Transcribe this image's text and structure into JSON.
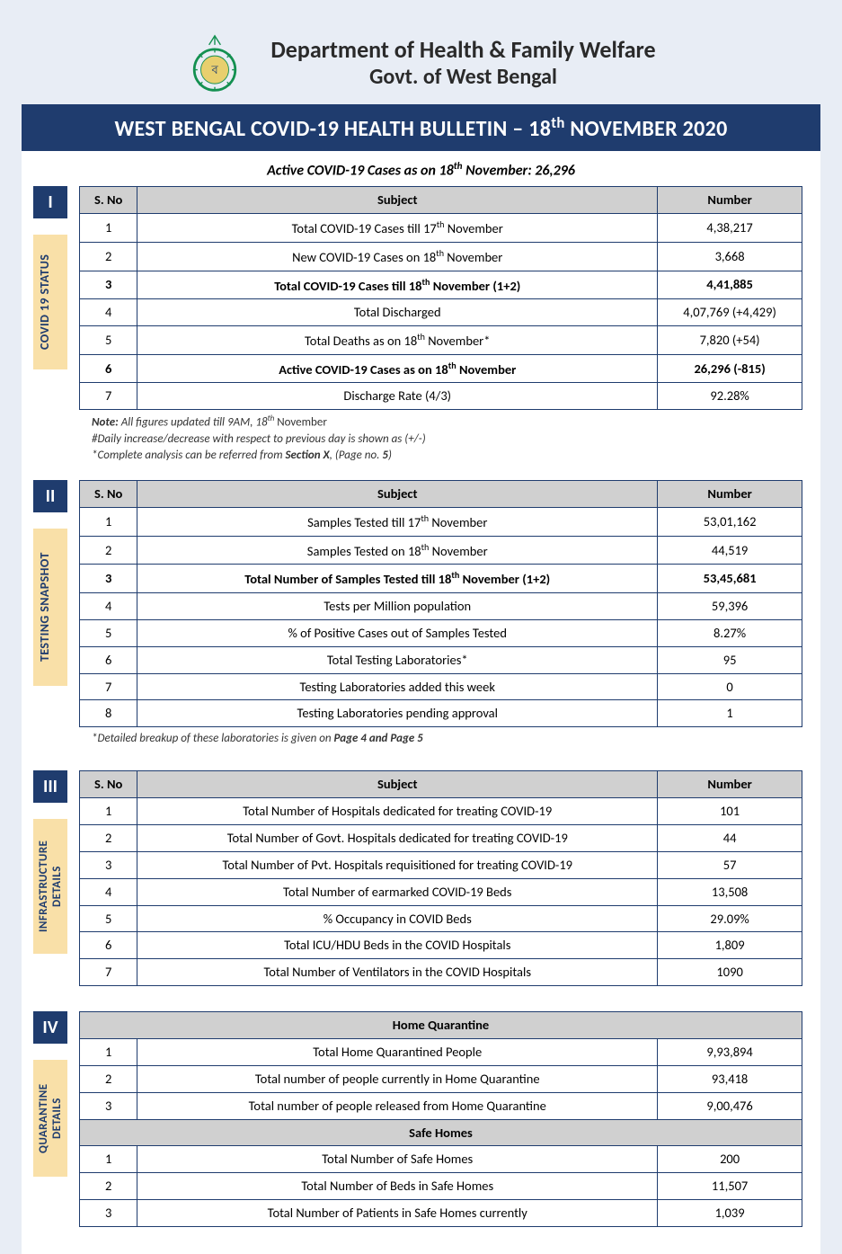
{
  "header": {
    "dept": "Department of Health & Family Welfare",
    "govt": "Govt. of West Bengal",
    "banner_pre": "WEST BENGAL COVID-19 HEALTH BULLETIN – 18",
    "banner_sup": "th",
    "banner_post": " NOVEMBER 2020",
    "active_line_pre": "Active COVID-19 Cases as on 18",
    "active_line_sup": "th",
    "active_line_post": " November: 26,296"
  },
  "columns": {
    "sno": "S. No",
    "subject": "Subject",
    "number": "Number"
  },
  "section_labels": {
    "s1": "COVID 19 STATUS",
    "s2": "TESTING SNAPSHOT",
    "s3": "INFRASTRUCTURE\nDETAILS",
    "s4": "QUARANTINE\nDETAILS"
  },
  "section_nums": {
    "s1": "I",
    "s2": "II",
    "s3": "III",
    "s4": "IV"
  },
  "table1": {
    "rows": [
      {
        "sno": "1",
        "subject_pre": "Total COVID-19 Cases till 17",
        "subject_sup": "th",
        "subject_post": " November",
        "num": "4,38,217",
        "bold": false
      },
      {
        "sno": "2",
        "subject_pre": "New COVID-19 Cases on 18",
        "subject_sup": "th",
        "subject_post": " November",
        "num": "3,668",
        "bold": false
      },
      {
        "sno": "3",
        "subject_pre": "Total COVID-19 Cases till 18",
        "subject_sup": "th",
        "subject_post": " November (1+2)",
        "num": "4,41,885",
        "bold": true
      },
      {
        "sno": "4",
        "subject_pre": "Total Discharged",
        "subject_sup": "",
        "subject_post": "",
        "num": "4,07,769 (+4,429)",
        "bold": false
      },
      {
        "sno": "5",
        "subject_pre": "Total Deaths as on 18",
        "subject_sup": "th",
        "subject_post": " November*",
        "num": "7,820 (+54)",
        "bold": false
      },
      {
        "sno": "6",
        "subject_pre": "Active COVID-19 Cases as on 18",
        "subject_sup": "th",
        "subject_post": " November",
        "num": "26,296 (-815)",
        "bold": true
      },
      {
        "sno": "7",
        "subject_pre": "Discharge Rate (4/3)",
        "subject_sup": "",
        "subject_post": "",
        "num": "92.28%",
        "bold": false
      }
    ]
  },
  "notes1": {
    "l1_a": "Note:",
    "l1_b": " All figures updated till 9AM, 18",
    "l1_sup": "th",
    "l1_c": " November",
    "l2": "#Daily increase/decrease with respect to previous day is shown as (+/-)",
    "l3_a": "*Complete analysis can be referred from ",
    "l3_b": "Section X",
    "l3_c": ", (Page no. ",
    "l3_d": "5",
    "l3_e": ")"
  },
  "table2": {
    "rows": [
      {
        "sno": "1",
        "subject_pre": "Samples Tested till 17",
        "subject_sup": "th",
        "subject_post": " November",
        "num": "53,01,162",
        "bold": false
      },
      {
        "sno": "2",
        "subject_pre": "Samples Tested on 18",
        "subject_sup": "th",
        "subject_post": " November",
        "num": "44,519",
        "bold": false
      },
      {
        "sno": "3",
        "subject_pre": "Total Number of Samples Tested till 18",
        "subject_sup": "th",
        "subject_post": " November (1+2)",
        "num": "53,45,681",
        "bold": true
      },
      {
        "sno": "4",
        "subject_pre": "Tests per Million population",
        "subject_sup": "",
        "subject_post": "",
        "num": "59,396",
        "bold": false
      },
      {
        "sno": "5",
        "subject_pre": "% of Positive Cases out of Samples Tested",
        "subject_sup": "",
        "subject_post": "",
        "num": "8.27%",
        "bold": false
      },
      {
        "sno": "6",
        "subject_pre": "Total Testing Laboratories*",
        "subject_sup": "",
        "subject_post": "",
        "num": "95",
        "bold": false
      },
      {
        "sno": "7",
        "subject_pre": "Testing Laboratories added this week",
        "subject_sup": "",
        "subject_post": "",
        "num": "0",
        "bold": false
      },
      {
        "sno": "8",
        "subject_pre": "Testing Laboratories pending approval",
        "subject_sup": "",
        "subject_post": "",
        "num": "1",
        "bold": false
      }
    ]
  },
  "notes2": {
    "l1_a": "*Detailed breakup of these laboratories is given on ",
    "l1_b": "Page 4 and Page 5"
  },
  "table3": {
    "rows": [
      {
        "sno": "1",
        "subject": "Total Number of Hospitals dedicated for treating COVID-19",
        "num": "101"
      },
      {
        "sno": "2",
        "subject": "Total Number of Govt. Hospitals dedicated for treating COVID-19",
        "num": "44"
      },
      {
        "sno": "3",
        "subject": "Total Number of Pvt. Hospitals requisitioned for treating COVID-19",
        "num": "57"
      },
      {
        "sno": "4",
        "subject": "Total Number of earmarked COVID-19 Beds",
        "num": "13,508"
      },
      {
        "sno": "5",
        "subject": "% Occupancy in COVID Beds",
        "num": "29.09%"
      },
      {
        "sno": "6",
        "subject": "Total ICU/HDU Beds in the COVID Hospitals",
        "num": "1,809"
      },
      {
        "sno": "7",
        "subject": "Total Number of Ventilators in the COVID Hospitals",
        "num": "1090"
      }
    ]
  },
  "table4": {
    "sub1": "Home Quarantine",
    "rowsA": [
      {
        "sno": "1",
        "subject": "Total Home Quarantined People",
        "num": "9,93,894"
      },
      {
        "sno": "2",
        "subject": "Total number of people currently in Home Quarantine",
        "num": "93,418"
      },
      {
        "sno": "3",
        "subject": "Total number of people released from Home Quarantine",
        "num": "9,00,476"
      }
    ],
    "sub2": "Safe Homes",
    "rowsB": [
      {
        "sno": "1",
        "subject": "Total Number of Safe Homes",
        "num": "200"
      },
      {
        "sno": "2",
        "subject": "Total Number of Beds in Safe Homes",
        "num": "11,507"
      },
      {
        "sno": "3",
        "subject": "Total Number of Patients in Safe Homes currently",
        "num": "1,039"
      }
    ]
  }
}
